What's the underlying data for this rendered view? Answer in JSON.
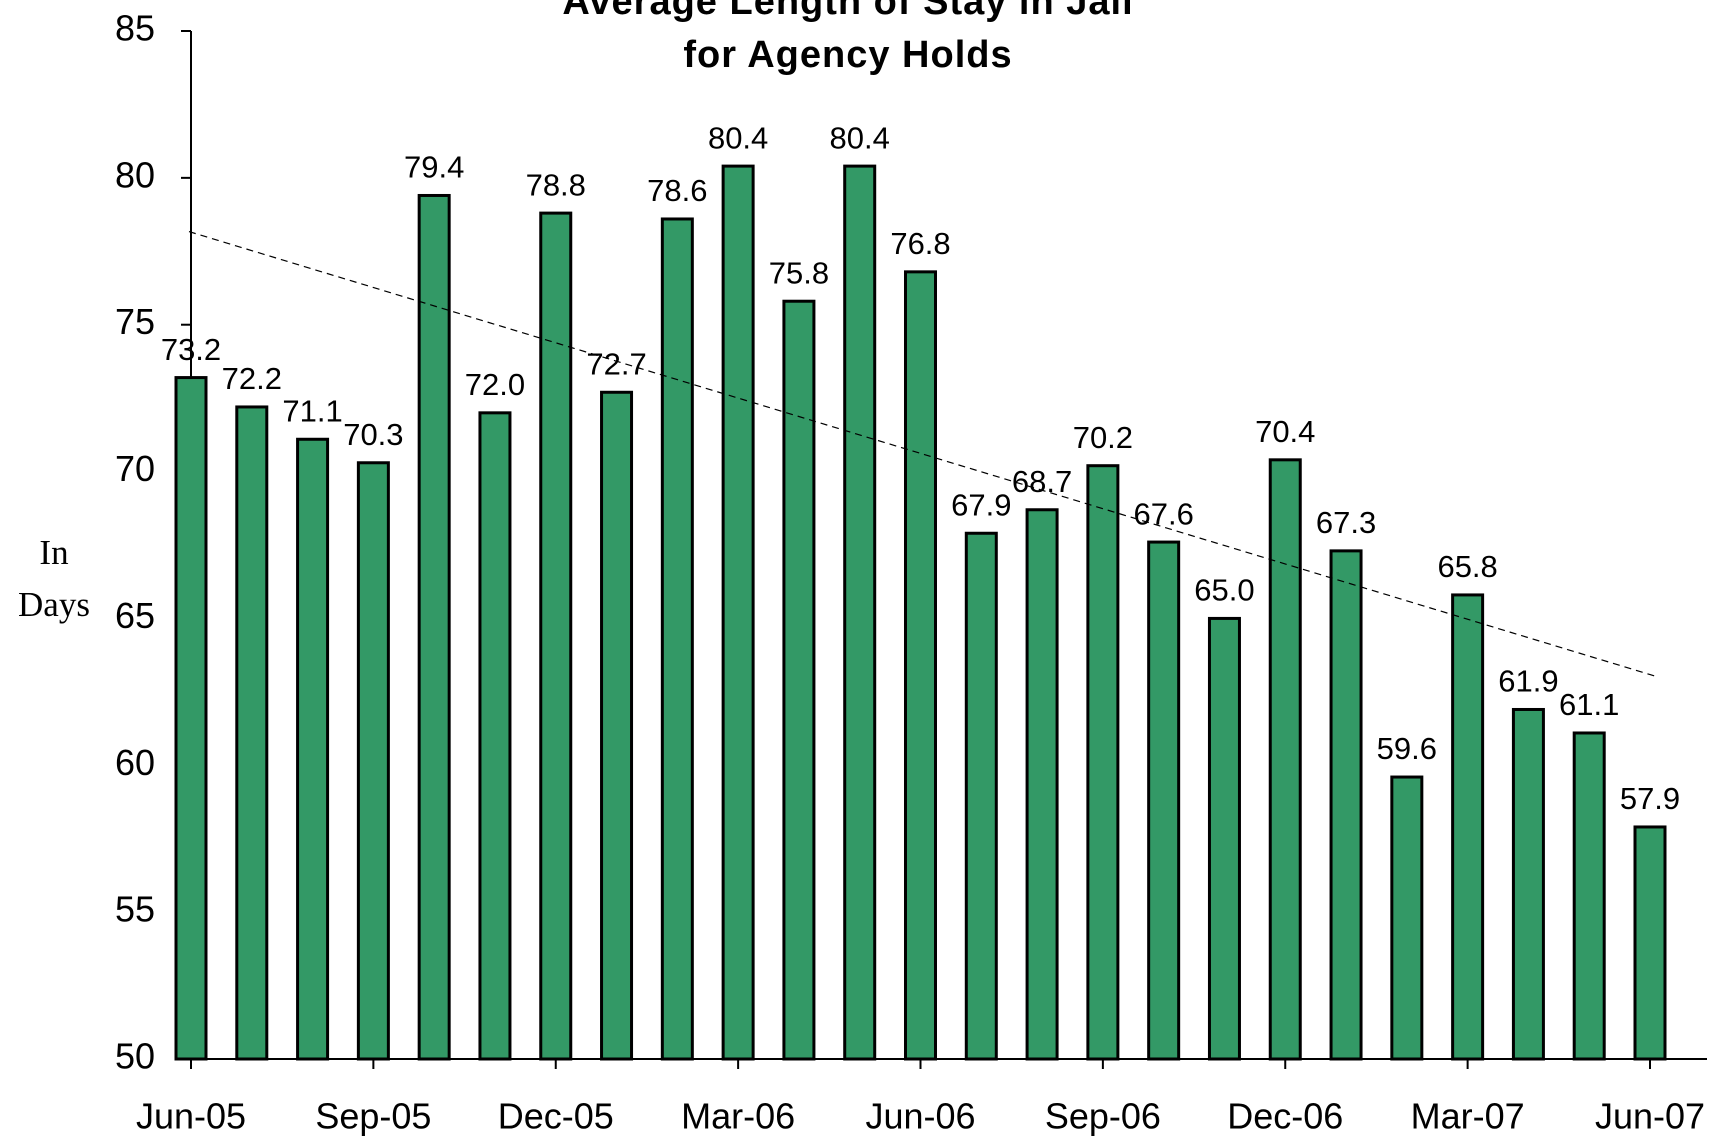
{
  "chart_data": {
    "type": "bar",
    "title": [
      "Average Length of Stay in Jail",
      "for Agency Holds"
    ],
    "y_label": "In Days",
    "categories": [
      "Jun-05",
      null,
      null,
      "Sep-05",
      null,
      null,
      "Dec-05",
      null,
      null,
      "Mar-06",
      null,
      null,
      "Jun-06",
      null,
      null,
      "Sep-06",
      null,
      null,
      "Dec-06",
      null,
      null,
      "Mar-07",
      null,
      null,
      "Jun-07"
    ],
    "values": [
      73.2,
      72.2,
      71.1,
      70.3,
      79.4,
      72.0,
      78.8,
      72.7,
      78.6,
      80.4,
      75.8,
      80.4,
      76.8,
      67.9,
      68.7,
      70.2,
      67.6,
      65.0,
      70.4,
      67.3,
      59.6,
      65.8,
      61.9,
      61.1,
      57.9
    ],
    "value_labels": [
      "73.2",
      "72.2",
      "71.1",
      "70.3",
      "79.4",
      "72.0",
      "78.8",
      "72.7",
      "78.6",
      "80.4",
      "75.8",
      "80.4",
      "76.8",
      "67.9",
      "68.7",
      "70.2",
      "67.6",
      "65.0",
      "70.4",
      "67.3",
      "59.6",
      "65.8",
      "61.9",
      "61.1",
      "57.9"
    ],
    "color": "#339966",
    "trendline": "linear",
    "ylim": [
      50,
      85
    ],
    "yticks": [
      50,
      55,
      60,
      65,
      70,
      75,
      80,
      85
    ],
    "grid": false
  }
}
